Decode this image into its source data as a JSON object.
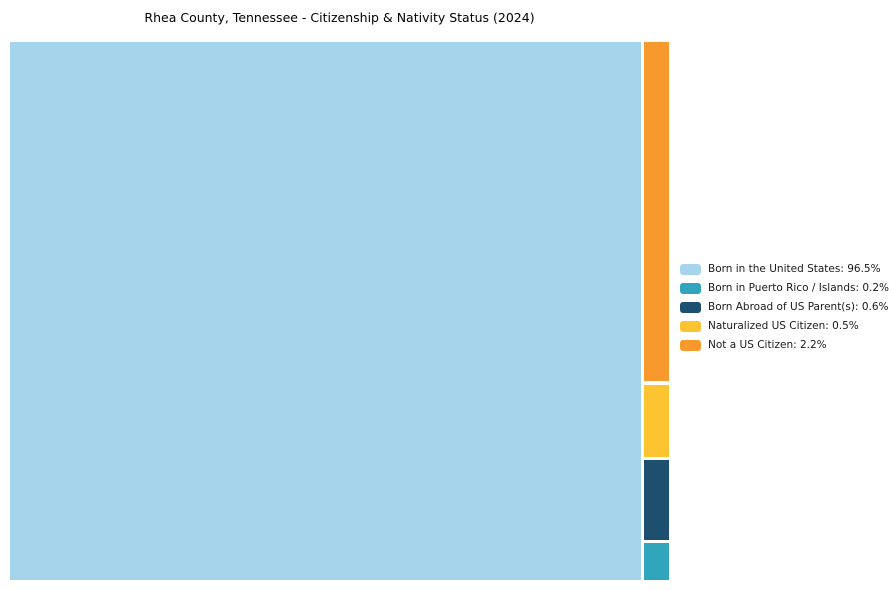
{
  "title": "Rhea County, Tennessee - Citizenship & Nativity Status (2024)",
  "colors": {
    "born_us": "#a6d4ea",
    "born_pr": "#31a5bb",
    "born_abroad": "#1d4f6e",
    "naturalized": "#fdc432",
    "not_citizen": "#f8992d"
  },
  "legend": [
    {
      "label": "Born in the United States: 96.5%",
      "color_key": "born_us"
    },
    {
      "label": "Born in Puerto Rico / Islands: 0.2%",
      "color_key": "born_pr"
    },
    {
      "label": "Born Abroad of US Parent(s): 0.6%",
      "color_key": "born_abroad"
    },
    {
      "label": "Naturalized US Citizen: 0.5%",
      "color_key": "naturalized"
    },
    {
      "label": "Not a US Citizen: 2.2%",
      "color_key": "not_citizen"
    }
  ],
  "chart_data": {
    "type": "treemap",
    "title": "Rhea County, Tennessee - Citizenship & Nativity Status (2024)",
    "categories": [
      "Born in the United States",
      "Born in Puerto Rico / Islands",
      "Born Abroad of US Parent(s)",
      "Naturalized US Citizen",
      "Not a US Citizen"
    ],
    "values": [
      96.5,
      0.2,
      0.6,
      0.5,
      2.2
    ],
    "unit": "%",
    "colors": [
      "#a6d4ea",
      "#31a5bb",
      "#1d4f6e",
      "#fdc432",
      "#f8992d"
    ],
    "legend_position": "right",
    "layout_note": "large tile left (96.5%), narrow right column top-to-bottom: Not a US Citizen, Naturalized US Citizen, Born Abroad of US Parent(s), Born in Puerto Rico / Islands"
  }
}
